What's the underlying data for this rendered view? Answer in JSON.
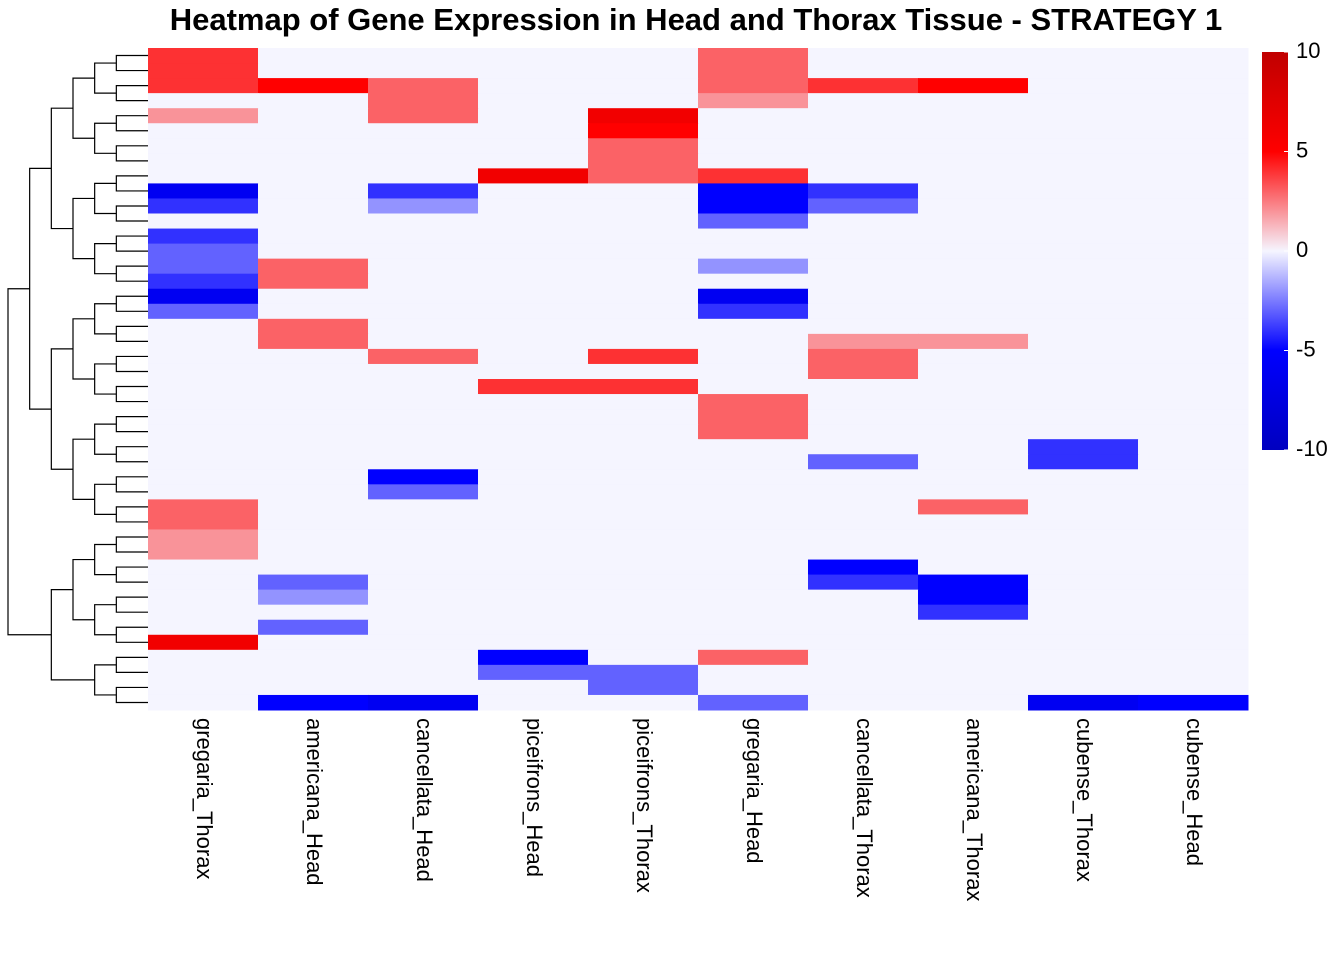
{
  "chart_data": {
    "type": "heatmap",
    "title": "Heatmap of Gene Expression in Head and Thorax Tissue - STRATEGY 1",
    "categories": [
      "gregaria_Thorax",
      "americana_Head",
      "cancellata_Head",
      "piceifrons_Head",
      "piceifrons_Thorax",
      "gregaria_Head",
      "cancellata_Thorax",
      "americana_Thorax",
      "cubense_Thorax",
      "cubense_Head"
    ],
    "values": [
      [
        4,
        0,
        0,
        0,
        0,
        3,
        0,
        0,
        0,
        0
      ],
      [
        4,
        0,
        0,
        0,
        0,
        3,
        0,
        0,
        0,
        0
      ],
      [
        4,
        5,
        3,
        0,
        0,
        3,
        4,
        5,
        0,
        0
      ],
      [
        0,
        0,
        3,
        0,
        0,
        2,
        0,
        0,
        0,
        0
      ],
      [
        2,
        0,
        3,
        0,
        6,
        0,
        0,
        0,
        0,
        0
      ],
      [
        0,
        0,
        0,
        0,
        5,
        0,
        0,
        0,
        0,
        0
      ],
      [
        0,
        0,
        0,
        0,
        3,
        0,
        0,
        0,
        0,
        0
      ],
      [
        0,
        0,
        0,
        0,
        3,
        0,
        0,
        0,
        0,
        0
      ],
      [
        0,
        0,
        0,
        6,
        3,
        4,
        0,
        0,
        0,
        0
      ],
      [
        -6,
        0,
        -4,
        0,
        0,
        -5,
        -4,
        0,
        0,
        0
      ],
      [
        -4,
        0,
        -2,
        0,
        0,
        -5,
        -3,
        0,
        0,
        0
      ],
      [
        0,
        0,
        0,
        0,
        0,
        -3,
        0,
        0,
        0,
        0
      ],
      [
        -4,
        0,
        0,
        0,
        0,
        0,
        0,
        0,
        0,
        0
      ],
      [
        -3,
        0,
        0,
        0,
        0,
        0,
        0,
        0,
        0,
        0
      ],
      [
        -3,
        3,
        0,
        0,
        0,
        -2,
        0,
        0,
        0,
        0
      ],
      [
        -4,
        3,
        0,
        0,
        0,
        0,
        0,
        0,
        0,
        0
      ],
      [
        -6,
        0,
        0,
        0,
        0,
        -6,
        0,
        0,
        0,
        0
      ],
      [
        -3,
        0,
        0,
        0,
        0,
        -4,
        0,
        0,
        0,
        0
      ],
      [
        0,
        3,
        0,
        0,
        0,
        0,
        0,
        0,
        0,
        0
      ],
      [
        0,
        3,
        0,
        0,
        0,
        0,
        2,
        2,
        0,
        0
      ],
      [
        0,
        0,
        3,
        0,
        4,
        0,
        3,
        0,
        0,
        0
      ],
      [
        0,
        0,
        0,
        0,
        0,
        0,
        3,
        0,
        0,
        0
      ],
      [
        0,
        0,
        0,
        4,
        4,
        0,
        0,
        0,
        0,
        0
      ],
      [
        0,
        0,
        0,
        0,
        0,
        3,
        0,
        0,
        0,
        0
      ],
      [
        0,
        0,
        0,
        0,
        0,
        3,
        0,
        0,
        0,
        0
      ],
      [
        0,
        0,
        0,
        0,
        0,
        3,
        0,
        0,
        0,
        0
      ],
      [
        0,
        0,
        0,
        0,
        0,
        0,
        0,
        0,
        -4,
        0
      ],
      [
        0,
        0,
        0,
        0,
        0,
        0,
        -3,
        0,
        -4,
        0
      ],
      [
        0,
        0,
        -5,
        0,
        0,
        0,
        0,
        0,
        0,
        0
      ],
      [
        0,
        0,
        -3,
        0,
        0,
        0,
        0,
        0,
        0,
        0
      ],
      [
        3,
        0,
        0,
        0,
        0,
        0,
        0,
        3,
        0,
        0
      ],
      [
        3,
        0,
        0,
        0,
        0,
        0,
        0,
        0,
        0,
        0
      ],
      [
        2,
        0,
        0,
        0,
        0,
        0,
        0,
        0,
        0,
        0
      ],
      [
        2,
        0,
        0,
        0,
        0,
        0,
        0,
        0,
        0,
        0
      ],
      [
        0,
        0,
        0,
        0,
        0,
        0,
        -5,
        0,
        0,
        0
      ],
      [
        0,
        -3,
        0,
        0,
        0,
        0,
        -4,
        -5,
        0,
        0
      ],
      [
        0,
        -2,
        0,
        0,
        0,
        0,
        0,
        -5,
        0,
        0
      ],
      [
        0,
        0,
        0,
        0,
        0,
        0,
        0,
        -4,
        0,
        0
      ],
      [
        0,
        -3,
        0,
        0,
        0,
        0,
        0,
        0,
        0,
        0
      ],
      [
        6,
        0,
        0,
        0,
        0,
        0,
        0,
        0,
        0,
        0
      ],
      [
        0,
        0,
        0,
        -5,
        0,
        3,
        0,
        0,
        0,
        0
      ],
      [
        0,
        0,
        0,
        -3,
        -3,
        0,
        0,
        0,
        0,
        0
      ],
      [
        0,
        0,
        0,
        0,
        -3,
        0,
        0,
        0,
        0,
        0
      ],
      [
        0,
        -5,
        -6,
        0,
        0,
        -3,
        0,
        0,
        -6,
        -5
      ]
    ],
    "zlim": [
      -10,
      10
    ],
    "zticks": [
      10,
      5,
      0,
      -5,
      -10
    ],
    "colorscale": [
      "#0000c0",
      "#0000ff",
      "#f5f5ff",
      "#ff0000",
      "#c00000"
    ]
  }
}
